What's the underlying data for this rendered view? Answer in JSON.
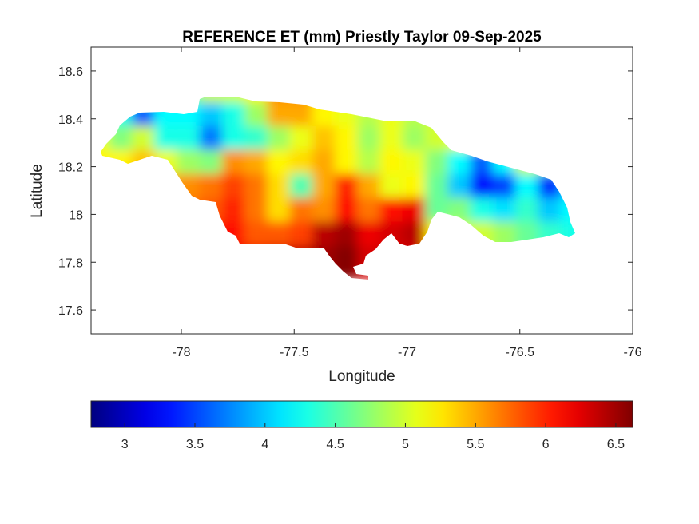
{
  "chart_data": {
    "type": "heatmap",
    "title": "REFERENCE ET (mm) Priestly Taylor 09-Sep-2025",
    "xlabel": "Longitude",
    "ylabel": "Latitude",
    "xlim": [
      -78.4,
      -76.0
    ],
    "ylim": [
      17.5,
      18.7
    ],
    "xticks": [
      "-78",
      "-77.5",
      "-77",
      "-76.5",
      "-76"
    ],
    "xtick_values": [
      -78,
      -77.5,
      -77,
      -76.5,
      -76
    ],
    "yticks": [
      "18.6",
      "18.4",
      "18.2",
      "18",
      "17.8",
      "17.6"
    ],
    "ytick_values": [
      18.6,
      18.4,
      18.2,
      18.0,
      17.8,
      17.6
    ],
    "colormap": "jet",
    "clim": [
      2.76,
      6.62
    ],
    "colorbar": {
      "location": "bottom",
      "ticks": [
        "3",
        "3.5",
        "4",
        "4.5",
        "5",
        "5.5",
        "6",
        "6.5"
      ],
      "tick_values": [
        3,
        3.5,
        4,
        4.5,
        5,
        5.5,
        6,
        6.5
      ]
    },
    "grid": false,
    "lon": [
      -78.35,
      -78.25,
      -78.15,
      -78.05,
      -77.95,
      -77.85,
      -77.75,
      -77.65,
      -77.55,
      -77.45,
      -77.35,
      -77.25,
      -77.15,
      -77.05,
      -76.95,
      -76.85,
      -76.75,
      -76.65,
      -76.55,
      -76.45,
      -76.35,
      -76.25
    ],
    "lat": [
      18.5,
      18.4,
      18.3,
      18.2,
      18.1,
      18.0,
      17.9,
      17.8
    ],
    "values": [
      [
        4.5,
        4.4,
        4.3,
        4.3,
        4.6,
        5.0,
        5.0,
        5.2,
        5.6,
        5.6,
        5.3,
        5.1,
        5.0,
        5.0,
        5.0,
        5.0,
        5.0,
        5.0,
        5.0,
        5.0,
        5.0,
        5.0
      ],
      [
        4.6,
        4.3,
        3.6,
        4.2,
        4.2,
        4.0,
        4.3,
        4.8,
        5.5,
        5.5,
        5.2,
        5.1,
        4.9,
        5.1,
        4.9,
        5.0,
        5.0,
        5.0,
        5.0,
        5.0,
        5.0,
        5.0
      ],
      [
        5.1,
        4.7,
        5.0,
        4.3,
        4.3,
        3.7,
        4.3,
        4.4,
        4.8,
        5.1,
        5.4,
        5.2,
        4.8,
        5.1,
        4.8,
        5.0,
        5.1,
        4.8,
        5.0,
        5.1,
        5.0,
        5.0
      ],
      [
        5.2,
        5.2,
        5.4,
        5.1,
        4.8,
        4.7,
        5.6,
        5.5,
        5.2,
        5.3,
        5.5,
        5.2,
        4.9,
        5.2,
        5.1,
        4.7,
        4.2,
        3.6,
        4.2,
        5.0,
        4.6,
        4.5
      ],
      [
        5.4,
        5.4,
        5.4,
        5.5,
        5.6,
        5.7,
        5.9,
        5.7,
        5.3,
        4.5,
        5.5,
        6.0,
        5.5,
        5.1,
        5.2,
        4.6,
        4.0,
        3.3,
        3.5,
        4.2,
        3.4,
        4.0
      ],
      [
        5.6,
        5.6,
        5.6,
        5.7,
        5.7,
        5.8,
        6.0,
        5.7,
        5.3,
        5.7,
        5.6,
        6.1,
        5.7,
        6.1,
        6.2,
        4.6,
        4.7,
        4.3,
        4.1,
        4.4,
        4.0,
        4.2
      ],
      [
        5.8,
        5.8,
        5.9,
        6.0,
        6.0,
        6.1,
        6.1,
        5.8,
        5.8,
        5.9,
        6.4,
        6.5,
        6.2,
        6.3,
        6.4,
        5.2,
        5.0,
        5.0,
        4.8,
        4.6,
        4.4,
        4.3
      ],
      [
        6.0,
        6.0,
        6.0,
        6.1,
        6.1,
        6.2,
        6.2,
        6.2,
        6.3,
        6.4,
        6.5,
        6.6,
        6.3,
        6.3,
        6.3,
        5.5,
        5.0,
        5.0,
        4.8,
        4.6,
        4.4,
        4.3
      ]
    ]
  }
}
